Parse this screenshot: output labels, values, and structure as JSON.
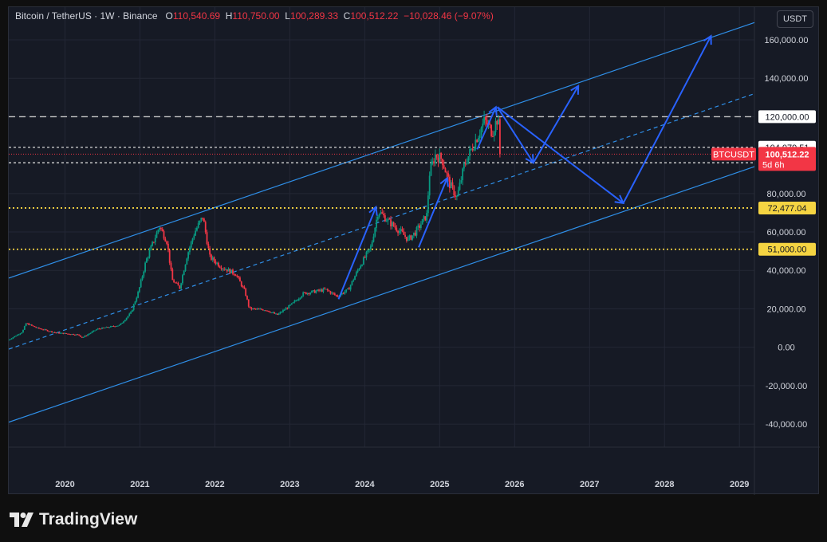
{
  "legend": {
    "symbol": "Bitcoin / TetherUS · 1W · Binance",
    "open_label": "O",
    "open": "110,540.69",
    "high_label": "H",
    "high": "110,750.00",
    "low_label": "L",
    "low": "100,289.33",
    "close_label": "C",
    "close": "100,512.22",
    "change": "−10,028.46 (−9.07%)"
  },
  "currency": "USDT",
  "brand": "TradingView",
  "colors": {
    "up": "#089981",
    "down": "#f23645",
    "channel": "#2f8fe8",
    "arrow": "#2962ff",
    "dashed": "#c7c7c7",
    "yellow": "#f5d442",
    "background": "#161a25",
    "grid": "#232735"
  },
  "chart_data": {
    "type": "candlestick",
    "symbol": "BTCUSDT",
    "interval": "1W",
    "x_ticks": [
      "2020",
      "2021",
      "2022",
      "2023",
      "2024",
      "2025",
      "2026",
      "2027",
      "2028",
      "2029"
    ],
    "x_tick_years": [
      2020,
      2021,
      2022,
      2023,
      2024,
      2025,
      2026,
      2027,
      2028,
      2029
    ],
    "xlim": [
      2019.25,
      2029.2
    ],
    "y_ticks": [
      "160,000.00",
      "140,000.00",
      "120,000.00",
      "80,000.00",
      "60,000.00",
      "40,000.00",
      "20,000.00",
      "0.00",
      "-20,000.00",
      "-40,000.00"
    ],
    "y_tick_values": [
      160000,
      140000,
      120000,
      80000,
      60000,
      40000,
      20000,
      0,
      -20000,
      -40000
    ],
    "ylim": [
      -52000,
      177000
    ],
    "price_path": [
      [
        2019.25,
        3500
      ],
      [
        2019.45,
        8000
      ],
      [
        2019.5,
        12500
      ],
      [
        2019.65,
        10000
      ],
      [
        2019.9,
        7500
      ],
      [
        2020.0,
        7200
      ],
      [
        2020.2,
        6500
      ],
      [
        2020.25,
        5000
      ],
      [
        2020.45,
        9500
      ],
      [
        2020.75,
        11500
      ],
      [
        2020.9,
        18000
      ],
      [
        2021.0,
        29000
      ],
      [
        2021.1,
        45000
      ],
      [
        2021.28,
        63000
      ],
      [
        2021.38,
        55000
      ],
      [
        2021.45,
        35000
      ],
      [
        2021.55,
        31000
      ],
      [
        2021.65,
        48000
      ],
      [
        2021.75,
        60000
      ],
      [
        2021.86,
        68000
      ],
      [
        2021.95,
        47000
      ],
      [
        2022.1,
        42000
      ],
      [
        2022.3,
        38000
      ],
      [
        2022.42,
        29000
      ],
      [
        2022.48,
        20000
      ],
      [
        2022.7,
        19500
      ],
      [
        2022.85,
        16800
      ],
      [
        2023.05,
        22500
      ],
      [
        2023.2,
        28000
      ],
      [
        2023.5,
        30000
      ],
      [
        2023.65,
        26500
      ],
      [
        2023.8,
        30000
      ],
      [
        2023.95,
        42000
      ],
      [
        2024.1,
        52000
      ],
      [
        2024.2,
        71000
      ],
      [
        2024.35,
        65000
      ],
      [
        2024.5,
        60000
      ],
      [
        2024.6,
        56000
      ],
      [
        2024.7,
        60000
      ],
      [
        2024.85,
        69000
      ],
      [
        2024.88,
        90000
      ],
      [
        2024.96,
        100000
      ],
      [
        2025.05,
        98000
      ],
      [
        2025.15,
        85000
      ],
      [
        2025.25,
        78000
      ],
      [
        2025.35,
        95000
      ],
      [
        2025.5,
        108000
      ],
      [
        2025.62,
        118000
      ],
      [
        2025.72,
        112000
      ],
      [
        2025.8,
        120000
      ],
      [
        2025.82,
        100512
      ]
    ],
    "horizontal_levels": [
      {
        "value": 120000,
        "label": "120,000.00",
        "style": "dashed-white"
      },
      {
        "value": 104079.51,
        "label": "104,079.51",
        "style": "dotted-white"
      },
      {
        "value": 96000,
        "label": "96,000.00",
        "style": "dotted-white"
      },
      {
        "value": 72477.04,
        "label": "72,477.04",
        "style": "dotted-yellow"
      },
      {
        "value": 51000,
        "label": "51,000.00",
        "style": "dotted-yellow"
      }
    ],
    "current_price": {
      "value": 100512.22,
      "label": "100,512.22",
      "symbol_label": "BTCUSDT",
      "countdown": "5d 6h"
    },
    "channel": {
      "upper": [
        [
          2019.25,
          36000
        ],
        [
          2029.2,
          169000
        ]
      ],
      "middle": [
        [
          2019.25,
          -1000
        ],
        [
          2029.2,
          132000
        ]
      ],
      "lower": [
        [
          2019.25,
          -39000
        ],
        [
          2029.2,
          94000
        ]
      ]
    },
    "projection_arrows": [
      [
        [
          2023.65,
          25000
        ],
        [
          2024.15,
          73000
        ]
      ],
      [
        [
          2024.72,
          52000
        ],
        [
          2025.1,
          88000
        ]
      ],
      [
        [
          2025.5,
          103000
        ],
        [
          2025.75,
          125000
        ]
      ],
      [
        [
          2025.77,
          125000
        ],
        [
          2026.25,
          96000
        ]
      ],
      [
        [
          2026.25,
          96000
        ],
        [
          2026.85,
          136000
        ]
      ],
      [
        [
          2025.77,
          125000
        ],
        [
          2027.45,
          75000
        ]
      ],
      [
        [
          2027.45,
          75000
        ],
        [
          2028.62,
          162000
        ]
      ]
    ]
  }
}
